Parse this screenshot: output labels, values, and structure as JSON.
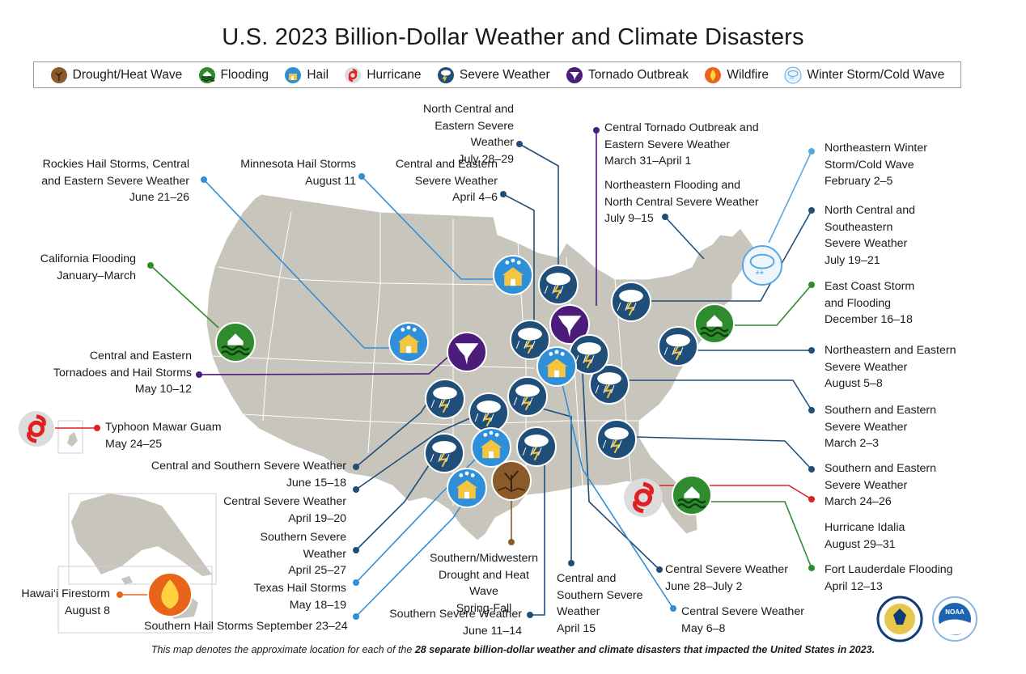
{
  "title": "U.S. 2023 Billion-Dollar Weather and Climate Disasters",
  "legend": [
    {
      "type": "drought",
      "label": "Drought/Heat Wave",
      "color": "#8a5a2b"
    },
    {
      "type": "flooding",
      "label": "Flooding",
      "color": "#2e8b2e"
    },
    {
      "type": "hail",
      "label": "Hail",
      "color": "#2f8fd8"
    },
    {
      "type": "hurricane",
      "label": "Hurricane",
      "color": "#d9d9d9"
    },
    {
      "type": "severe",
      "label": "Severe Weather",
      "color": "#1f4e79"
    },
    {
      "type": "tornado",
      "label": "Tornado Outbreak",
      "color": "#4b1c7a"
    },
    {
      "type": "wildfire",
      "label": "Wildfire",
      "color": "#e8641b"
    },
    {
      "type": "winter",
      "label": "Winter Storm/Cold Wave",
      "color": "#dbeaf8"
    }
  ],
  "events": [
    {
      "type": "severe",
      "name": "North Central and Eastern Severe Weather",
      "date": "July 28–29"
    },
    {
      "type": "tornado",
      "name": "Central Tornado Outbreak and Eastern Severe Weather",
      "date": "March 31–April 1"
    },
    {
      "type": "severe",
      "name": "Northeastern Flooding and North Central Severe Weather",
      "date": "July 9–15"
    },
    {
      "type": "winter",
      "name": "Northeastern Winter Storm/Cold Wave",
      "date": "February 2–5"
    },
    {
      "type": "severe",
      "name": "North Central and Southeastern Severe Weather",
      "date": "July 19–21"
    },
    {
      "type": "flooding",
      "name": "East Coast Storm and Flooding",
      "date": "December 16–18"
    },
    {
      "type": "severe",
      "name": "Northeastern and Eastern Severe Weather",
      "date": "August 5–8"
    },
    {
      "type": "severe",
      "name": "Southern and Eastern Severe Weather",
      "date": "March 2–3"
    },
    {
      "type": "severe",
      "name": "Southern and Eastern Severe Weather",
      "date": "March 24–26"
    },
    {
      "type": "hurricane",
      "name": "Hurricane Idalia",
      "date": "August 29–31"
    },
    {
      "type": "flooding",
      "name": "Fort Lauderdale Flooding",
      "date": "April 12–13"
    },
    {
      "type": "hail",
      "name": "Rockies Hail Storms, Central and Eastern Severe Weather",
      "date": "June 21–26"
    },
    {
      "type": "hail",
      "name": "Minnesota Hail Storms",
      "date": "August 11"
    },
    {
      "type": "severe",
      "name": "Central and Eastern Severe Weather",
      "date": "April 4–6"
    },
    {
      "type": "flooding",
      "name": "California Flooding",
      "date": "January–March"
    },
    {
      "type": "tornado",
      "name": "Central and Eastern Tornadoes and Hail Storms",
      "date": "May 10–12"
    },
    {
      "type": "hurricane",
      "name": "Typhoon Mawar Guam",
      "date": "May 24–25"
    },
    {
      "type": "severe",
      "name": "Central and Southern Severe Weather",
      "date": "June 15–18"
    },
    {
      "type": "severe",
      "name": "Central Severe Weather",
      "date": "April 19–20"
    },
    {
      "type": "severe",
      "name": "Southern Severe Weather",
      "date": "April 25–27"
    },
    {
      "type": "hail",
      "name": "Texas Hail Storms",
      "date": "May 18–19"
    },
    {
      "type": "wildfire",
      "name": "Hawai‘i Firestorm",
      "date": "August 8"
    },
    {
      "type": "hail",
      "name": "Southern Hail Storms",
      "date": "September 23–24"
    },
    {
      "type": "severe",
      "name": "Southern Severe Weather",
      "date": "June 11–14"
    },
    {
      "type": "drought",
      "name": "Southern/Midwestern Drought and Heat Wave",
      "date": "Spring-Fall"
    },
    {
      "type": "severe",
      "name": "Central and Southern Severe Weather",
      "date": "April 15"
    },
    {
      "type": "severe",
      "name": "Central Severe Weather",
      "date": "June 28–July 2"
    },
    {
      "type": "hail",
      "name": "Central Severe Weather",
      "date": "May 6–8"
    }
  ],
  "footer": {
    "prefix": "This map denotes the approximate location for each of the ",
    "bold": "28 separate billion-dollar weather and climate disasters that impacted the United States in 2023."
  }
}
